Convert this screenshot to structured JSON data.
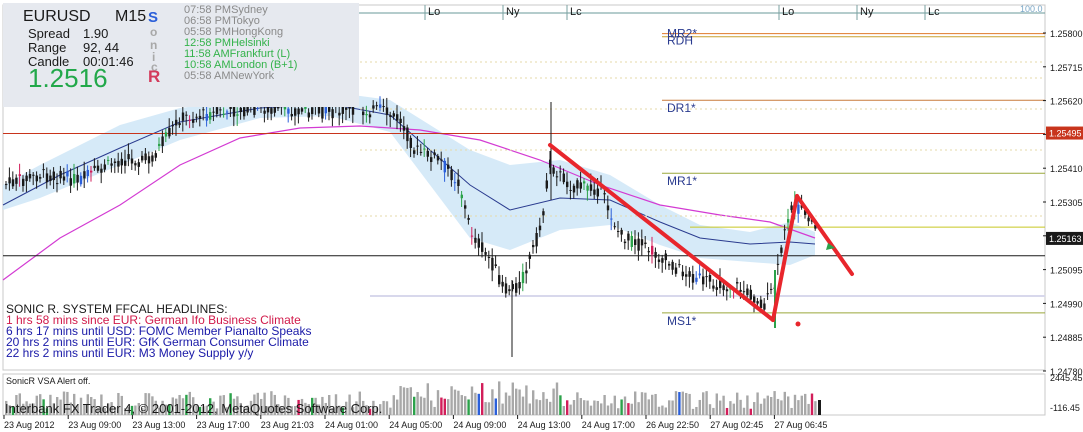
{
  "window": {
    "symbol": "EURUSD",
    "timeframe": "M15",
    "scale_label": "100.0"
  },
  "info": {
    "spread_label": "Spread",
    "spread_value": "1.90",
    "range_label": "Range",
    "range_value": "92, 44",
    "candle_label": "Candle",
    "candle_value": "00:01:46",
    "price": "1.2516",
    "letters": [
      "S",
      "o",
      "n",
      "i",
      "c",
      "R"
    ]
  },
  "sessions": [
    {
      "time": "07:58 PM",
      "city": "Sydney",
      "color": "#8a8a8a"
    },
    {
      "time": "06:58 PM",
      "city": "Tokyo",
      "color": "#8a8a8a"
    },
    {
      "time": "05:58 PM",
      "city": "HongKong",
      "color": "#8a8a8a"
    },
    {
      "time": "12:58 PM",
      "city": "Helsinki",
      "color": "#33b24a"
    },
    {
      "time": "11:58 AM",
      "city": "Frankfurt  (L)",
      "color": "#33b24a"
    },
    {
      "time": "10:58 AM",
      "city": "London  (B+1)",
      "color": "#33b24a"
    },
    {
      "time": "05:58 AM",
      "city": "NewYork",
      "color": "#8a8a8a"
    }
  ],
  "headlines": {
    "title": "SONIC R. SYSTEM  FFCAL HEADLINES:",
    "items": [
      {
        "text": "1 hrs 58 mins since EUR: German Ifo Business Climate",
        "color": "#d11a4a"
      },
      {
        "text": "6 hrs 17 mins until USD: FOMC Member Pianalto Speaks",
        "color": "#1a1aa8"
      },
      {
        "text": "20 hrs 2 mins until EUR: GfK German Consumer Climate",
        "color": "#1a1aa8"
      },
      {
        "text": "22 hrs 2 mins until EUR: M3 Money Supply y/y",
        "color": "#1a1aa8"
      }
    ]
  },
  "session_markers": [
    "Lo",
    "Ny",
    "Lc",
    "Lo",
    "Ny",
    "Lc"
  ],
  "pivot_labels": [
    "MR2*",
    "RDH",
    "DR1*",
    "MR1*",
    "MS1*"
  ],
  "price_axis": {
    "ticks": [
      "1.25800",
      "1.25715",
      "1.25620",
      "1.25515",
      "1.25410",
      "1.25305",
      "1.25200",
      "1.25095",
      "1.24990",
      "1.24885",
      "1.24780"
    ],
    "tag_red": "1.25495",
    "tag_current": "1.25163"
  },
  "time_axis": [
    "23 Aug 2012",
    "23 Aug 09:00",
    "23 Aug 13:00",
    "23 Aug 17:00",
    "23 Aug 21:03",
    "24 Aug 01:00",
    "24 Aug 05:00",
    "24 Aug 09:00",
    "24 Aug 13:00",
    "24 Aug 17:00",
    "26 Aug 22:50",
    "27 Aug 02:45",
    "27 Aug 06:45"
  ],
  "vsa": {
    "label": "SonicR VSA   Alert off.",
    "ticks": [
      "2445.45",
      "-116.45"
    ]
  },
  "footer": "Interbank FX Trader 4, © 2001-2012, MetaQuotes Software Corp.",
  "colors": {
    "bull": "#2ba24a",
    "bear": "#2b5fd9",
    "neutral": "#1a1a1a",
    "dragon_band": "#cfe6f7",
    "ema_magenta": "#d33bd3",
    "ema_blue": "#2a3b8f",
    "trend_line": "#e8262c"
  },
  "chart_data": {
    "type": "candlestick",
    "symbol": "EURUSD",
    "timeframe": "M15",
    "ylim": [
      1.2475,
      1.259
    ],
    "current_price": 1.25163,
    "levels": [
      {
        "name": "MR2*",
        "value": 1.2581
      },
      {
        "name": "RDH",
        "value": 1.258
      },
      {
        "name": "DR1*",
        "value": 1.256
      },
      {
        "name": "MR1*",
        "value": 1.2537
      },
      {
        "name": "MS1*",
        "value": 1.2493
      },
      {
        "value": 1.25495
      },
      {
        "value": 1.252
      },
      {
        "value": 1.2511
      }
    ],
    "vsa_ylim": [
      -116.45,
      2445.45
    ]
  }
}
